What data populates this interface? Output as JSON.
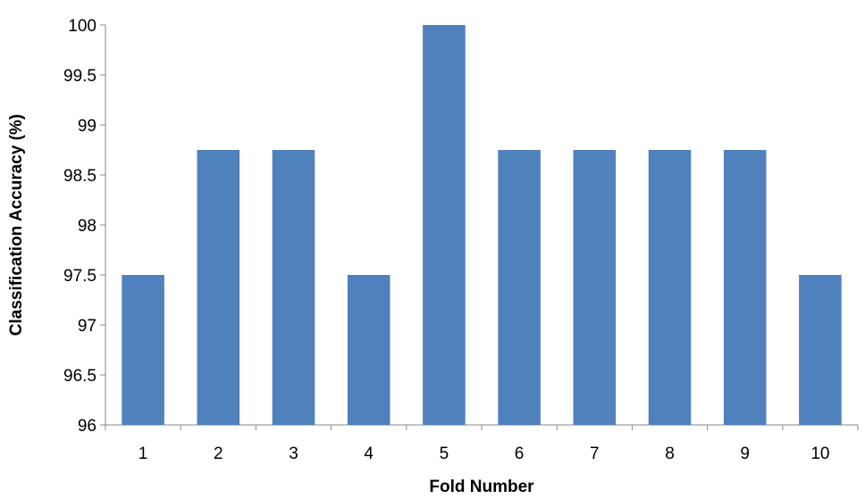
{
  "chart_data": {
    "type": "bar",
    "title": "",
    "xlabel": "Fold Number",
    "ylabel": "Classification Accuracy (%)",
    "categories": [
      "1",
      "2",
      "3",
      "4",
      "5",
      "6",
      "7",
      "8",
      "9",
      "10"
    ],
    "values": [
      97.5,
      98.75,
      98.75,
      97.5,
      100,
      98.75,
      98.75,
      98.75,
      98.75,
      97.5
    ],
    "ylim": [
      96,
      100
    ],
    "yticks": [
      "96",
      "96.5",
      "97",
      "97.5",
      "98",
      "98.5",
      "99",
      "99.5",
      "100"
    ],
    "grid": false,
    "legend": "none",
    "bar_color": "#4F81BD"
  }
}
